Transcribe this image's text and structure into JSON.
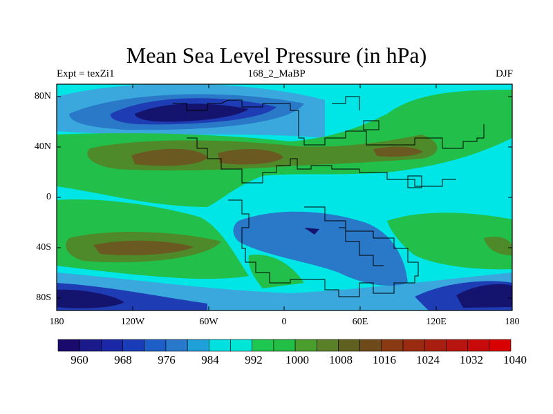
{
  "title": "Mean Sea Level Pressure (in hPa)",
  "left_label": "Expt = texZi1",
  "center_label": "168_2_MaBP",
  "right_label": "DJF",
  "lat_ticks": [
    "80N",
    "40N",
    "0",
    "40S",
    "80S"
  ],
  "lon_ticks": [
    "180",
    "120W",
    "60W",
    "0",
    "60E",
    "120E",
    "180"
  ],
  "colorbar": {
    "labels": [
      "960",
      "968",
      "976",
      "984",
      "992",
      "1000",
      "1008",
      "1016",
      "1024",
      "1032",
      "1040"
    ],
    "colors": [
      "#1a0a6e",
      "#1a1a8c",
      "#1a28a8",
      "#1a3cb8",
      "#1e5ec8",
      "#2878cc",
      "#20a0d8",
      "#00e0e0",
      "#00e6d6",
      "#1ec850",
      "#22be46",
      "#4a9e2e",
      "#5a8028",
      "#606020",
      "#6e4a1a",
      "#8a3a12",
      "#9a2a10",
      "#a81e10",
      "#b81410",
      "#c80a0a",
      "#d80000"
    ]
  },
  "colors": {
    "deep_low": "#14146e",
    "low": "#1e3cb4",
    "mid_low": "#2a78c8",
    "light": "#3aa8dc",
    "cyan": "#00e6e6",
    "green": "#22c04a",
    "olive": "#4e8a2a",
    "brown": "#6a5a22"
  }
}
